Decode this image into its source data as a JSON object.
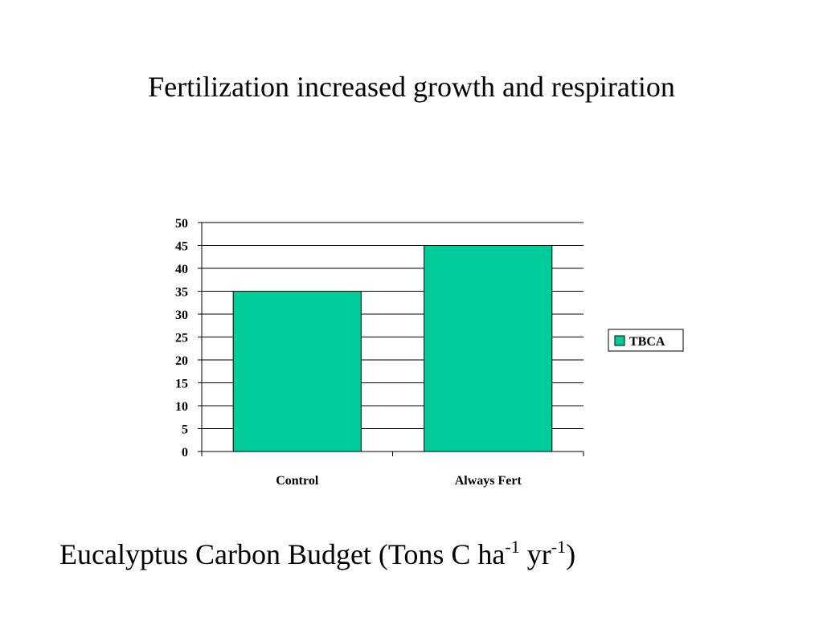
{
  "slide": {
    "title": "Fertilization increased growth and respiration"
  },
  "caption": {
    "main": "Eucalyptus Carbon Budget (Tons C ha",
    "sup1": "-1",
    "mid": " yr",
    "sup2": "-1",
    "end": ")"
  },
  "colors": {
    "bar_fill": "#00CC99",
    "gridline": "#000000",
    "text": "#000000"
  },
  "chart_data": {
    "type": "bar",
    "categories": [
      "Control",
      "Always Fert"
    ],
    "series": [
      {
        "name": "TBCA",
        "values": [
          35,
          45
        ]
      }
    ],
    "ylim": [
      0,
      50
    ],
    "yticks": [
      0,
      5,
      10,
      15,
      20,
      25,
      30,
      35,
      40,
      45,
      50
    ],
    "grid": true,
    "legend": "right",
    "title": "",
    "xlabel": "",
    "ylabel": ""
  }
}
